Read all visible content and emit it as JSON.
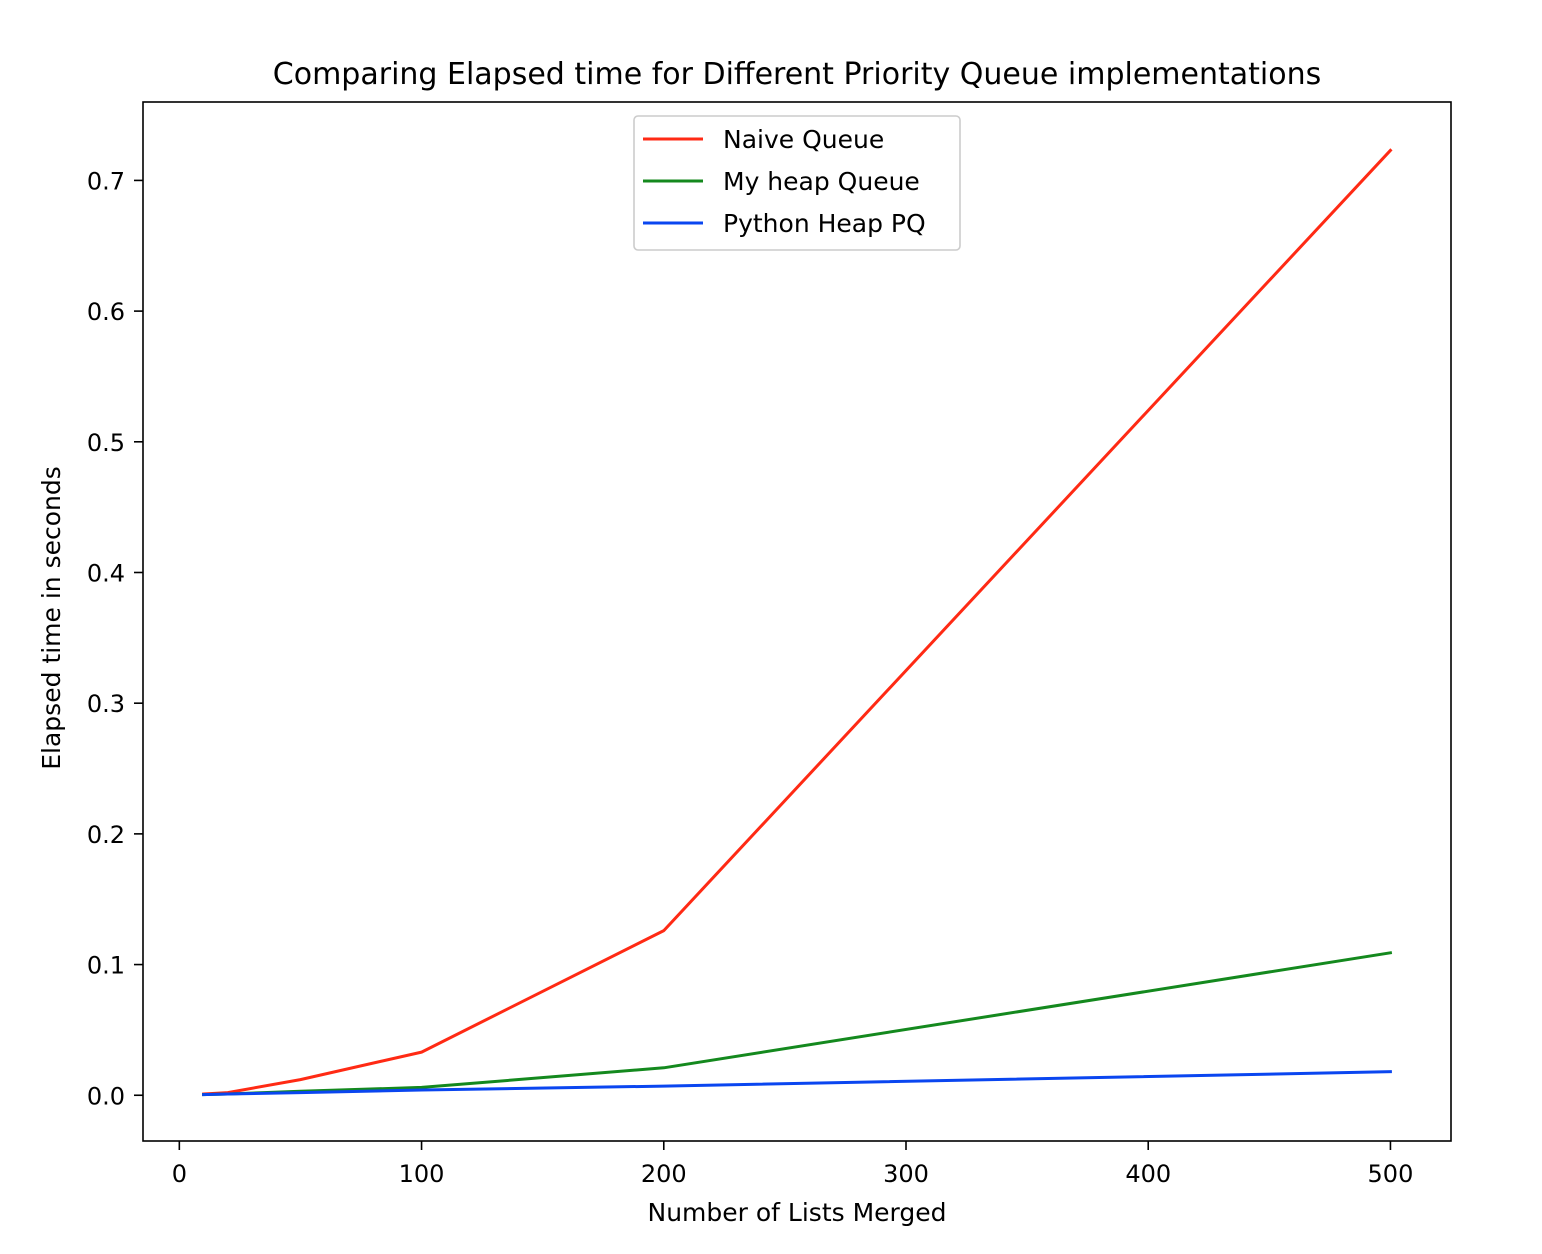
{
  "chart_data": {
    "type": "line",
    "title": "Comparing Elapsed time for Different Priority Queue implementations",
    "xlabel": "Number of Lists Merged",
    "ylabel": "Elapsed time in seconds",
    "xlim": [
      -15,
      525
    ],
    "ylim": [
      -0.035,
      0.76
    ],
    "xticks": [
      0,
      100,
      200,
      300,
      400,
      500
    ],
    "xtick_labels": [
      "0",
      "100",
      "200",
      "300",
      "400",
      "500"
    ],
    "yticks": [
      0.0,
      0.1,
      0.2,
      0.3,
      0.4,
      0.5,
      0.6,
      0.7
    ],
    "ytick_labels": [
      "0.0",
      "0.1",
      "0.2",
      "0.3",
      "0.4",
      "0.5",
      "0.6",
      "0.7"
    ],
    "grid": false,
    "legend_position": "upper center",
    "series": [
      {
        "name": "Naive Queue",
        "color": "#ff2a14",
        "x": [
          10,
          20,
          50,
          100,
          200,
          500
        ],
        "y": [
          0.001,
          0.002,
          0.012,
          0.033,
          0.126,
          0.723
        ]
      },
      {
        "name": "My heap Queue",
        "color": "#14891e",
        "x": [
          10,
          20,
          50,
          100,
          200,
          500
        ],
        "y": [
          0.0005,
          0.001,
          0.003,
          0.006,
          0.021,
          0.109
        ]
      },
      {
        "name": "Python Heap PQ",
        "color": "#0a46f0",
        "x": [
          10,
          20,
          50,
          100,
          200,
          500
        ],
        "y": [
          0.0005,
          0.001,
          0.002,
          0.004,
          0.007,
          0.018
        ]
      }
    ]
  }
}
